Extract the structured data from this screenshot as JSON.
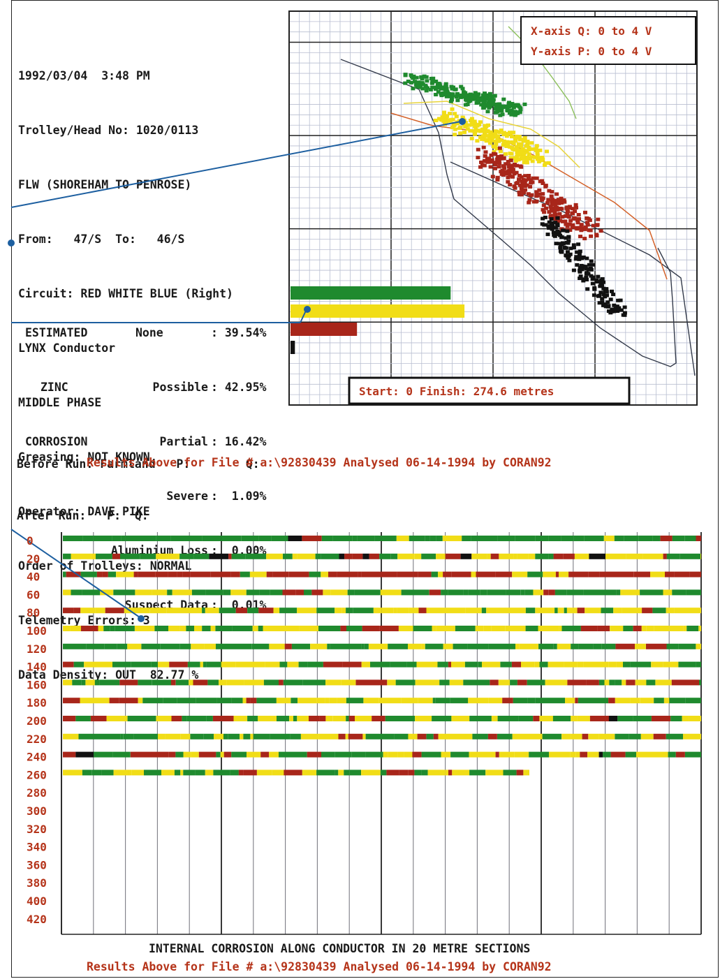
{
  "header": {
    "lines": [
      "1992/03/04  3:48 PM",
      "Trolley/Head No: 1020/0113",
      "FLW (SHOREHAM TO PENROSE)",
      "From:   47/S  To:   46/S",
      "Circuit: RED WHITE BLUE (Right)",
      "LYNX Conductor",
      "MIDDLE PHASE",
      "Greasing: NOT KNOWN",
      "Operator: DAVE PIKE",
      "Order of Trolleys: NORMAL",
      "Telemetry Errors: 3",
      "Data Density: OUT  82.77 %"
    ]
  },
  "estimate": {
    "group_label": [
      "ESTIMATED",
      "ZINC",
      "CORROSION"
    ],
    "rows": [
      {
        "label": "None",
        "value": ": 39.54%",
        "pct": 39.54,
        "color": "#1f8a2e"
      },
      {
        "label": "Possible",
        "value": ": 42.95%",
        "pct": 42.95,
        "color": "#f1dd17"
      },
      {
        "label": "Partial",
        "value": ": 16.42%",
        "pct": 16.42,
        "color": "#a8261a"
      },
      {
        "label": "Severe",
        "value": ":  1.09%",
        "pct": 1.09,
        "color": "#111111"
      },
      {
        "label": "Aluminium Loss",
        "value": ":  0.00%",
        "pct": 0.0,
        "color": "#555555"
      },
      {
        "label": "Suspect Data",
        "value": ":  0.01%",
        "pct": 0.01,
        "color": "#555555"
      }
    ]
  },
  "scatter": {
    "axis_x_label": "X-axis Q: 0 to 4 V",
    "axis_y_label": "Y-axis P: 0 to 4 V",
    "start_finish": "Start: 0    Finish: 274.6 metres",
    "xlim": [
      0,
      4
    ],
    "ylim": [
      0,
      4
    ]
  },
  "run_info": {
    "before": "Before Run: Farmland   P:        Q:",
    "after": "After Run:   P:  Q:",
    "results": "Results Above for File # a:\\92830439 Analysed 06-14-1994 by CORAN92"
  },
  "strip_chart": {
    "row_labels": [
      "0",
      "20",
      "40",
      "60",
      "80",
      "100",
      "120",
      "140",
      "160",
      "180",
      "200",
      "220",
      "240",
      "260",
      "280",
      "300",
      "320",
      "340",
      "360",
      "380",
      "400",
      "420"
    ],
    "data_rows": 14,
    "title": "INTERNAL CORROSION ALONG CONDUCTOR IN 20 METRE SECTIONS",
    "results": "Results Above for File # a:\\92830439 Analysed 06-14-1994 by CORAN92"
  },
  "colors": {
    "none": "#1f8a2e",
    "possible": "#f1dd17",
    "partial": "#a8261a",
    "severe": "#111111",
    "grid": "#b8bed0",
    "callout": "#1d5fa0",
    "accent_red": "#b5341a"
  },
  "chart_data": [
    {
      "type": "bar",
      "categories": [
        "None",
        "Possible",
        "Partial",
        "Severe",
        "Aluminium Loss",
        "Suspect Data"
      ],
      "values": [
        39.54,
        42.95,
        16.42,
        1.09,
        0.0,
        0.01
      ]
    },
    {
      "type": "scatter",
      "xlim": [
        0,
        4
      ],
      "ylim": [
        0,
        4
      ],
      "grid": true
    },
    {
      "type": "heatmap",
      "categories": [
        "0",
        "20",
        "40",
        "60",
        "80",
        "100",
        "120",
        "140",
        "160",
        "180",
        "200",
        "220",
        "240",
        "260"
      ],
      "grid": true
    }
  ]
}
